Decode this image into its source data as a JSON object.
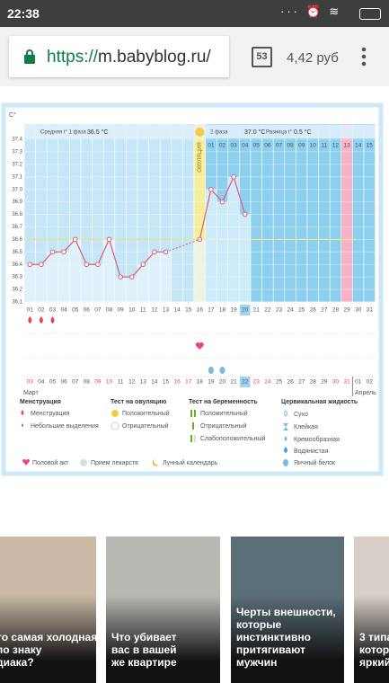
{
  "status_bar": {
    "time": "22:38"
  },
  "browser": {
    "url_scheme": "https://",
    "url_rest": "m.babyblog.ru/",
    "tab_count": "53",
    "balance": "4,42 руб"
  },
  "chart": {
    "y_unit": "C°",
    "ylim": [
      36.1,
      37.4
    ],
    "yticks": [
      37.4,
      37.3,
      37.2,
      37.1,
      {
        "value": 37,
        "label": "37.0"
      },
      36.9,
      36.8,
      36.7,
      36.6,
      36.5,
      36.4,
      36.3,
      36.2,
      36.1
    ],
    "days": [
      "01",
      "02",
      "03",
      "04",
      "05",
      "06",
      "07",
      "08",
      "09",
      "10",
      "11",
      "12",
      "13",
      "14",
      "15",
      "16",
      "17",
      "18",
      "19",
      "20",
      "21",
      "22",
      "23",
      "24",
      "25",
      "26",
      "27",
      "28",
      "29",
      "30",
      "31"
    ],
    "temperatures": [
      36.4,
      36.4,
      36.5,
      36.5,
      36.6,
      36.4,
      36.4,
      36.6,
      36.3,
      36.3,
      36.4,
      36.5,
      36.5,
      null,
      null,
      36.6,
      37.0,
      36.9,
      37.1,
      36.8,
      null,
      null,
      null,
      null,
      null,
      null,
      null,
      null,
      null,
      null,
      null
    ],
    "coverline": 36.6,
    "header": {
      "phase1_label": "Средняя t° 1 фаза",
      "phase1_value": "36.5 °C",
      "phase2_label": "2 фаза",
      "phase2_value": "37.0 °C",
      "diff_label": "Разница t°",
      "diff_value": "0.5 °C"
    },
    "ovulation_day": "16",
    "ovulation_label": "ОВУЛЯЦИЯ",
    "phase2_days": [
      "01",
      "02",
      "03",
      "04",
      "05",
      "06",
      "07",
      "08",
      "09",
      "10",
      "11",
      "12",
      "13",
      "14",
      "15"
    ],
    "highlight_column": "29",
    "highlight_day": "20",
    "events": [
      {
        "type": "menstruation",
        "day": "01"
      },
      {
        "type": "menstruation",
        "day": "02"
      },
      {
        "type": "menstruation",
        "day": "03"
      },
      {
        "type": "intercourse",
        "day": "16"
      },
      {
        "type": "egg_white",
        "day": "17"
      },
      {
        "type": "egg_white",
        "day": "18"
      }
    ],
    "dates": [
      "03",
      "04",
      "05",
      "06",
      "07",
      "08",
      "09",
      "10",
      "11",
      "12",
      "13",
      "14",
      "15",
      "16",
      "17",
      "18",
      "19",
      "20",
      "21",
      "22",
      "23",
      "24",
      "25",
      "26",
      "27",
      "28",
      "29",
      "30",
      "31",
      "01",
      "02"
    ],
    "date_colors": [
      "#e8455a",
      "#555",
      "#555",
      "#555",
      "#555",
      "#555",
      "#e8455a",
      "#e8455a",
      "#555",
      "#555",
      "#555",
      "#555",
      "#555",
      "#e8455a",
      "#e8455a",
      "#555",
      "#555",
      "#555",
      "#555",
      "#555",
      "#e8455a",
      "#e8455a",
      "#555",
      "#555",
      "#555",
      "#555",
      "#555",
      "#e8455a",
      "#e8455a",
      "#555",
      "#555"
    ],
    "highlight_date": "22",
    "month_start": "Март",
    "month_end": "Апрель"
  },
  "legend": {
    "menstruation": {
      "title": "Менструация",
      "items": [
        "Менструация",
        "Небольшие выделения"
      ]
    },
    "ovulation_test": {
      "title": "Тест на овуляцию",
      "items": [
        "Положительный",
        "Отрицательный"
      ]
    },
    "pregnancy_test": {
      "title": "Тест на беременность",
      "items": [
        "Положительный",
        "Отрицательный",
        "Слабоположительный"
      ]
    },
    "cervical": {
      "title": "Цервикальная жидкость",
      "items": [
        "Сухо",
        "Клейкая",
        "Кремообразная",
        "Водянистая",
        "Яичный белок"
      ]
    },
    "other": [
      "Половой акт",
      "Прием лекарств",
      "Лунный календарь"
    ]
  },
  "articles": [
    {
      "lines": [
        "то самая холодная",
        "по знаку",
        "диака?"
      ]
    },
    {
      "lines": [
        "Что убивает",
        "вас в вашей",
        "же квартире"
      ]
    },
    {
      "lines": [
        "Черты внешности,",
        "которые",
        "инстинктивно",
        "притягивают",
        "мужчин"
      ]
    },
    {
      "lines": [
        "3 типа",
        "которые",
        "яркий"
      ]
    }
  ]
}
